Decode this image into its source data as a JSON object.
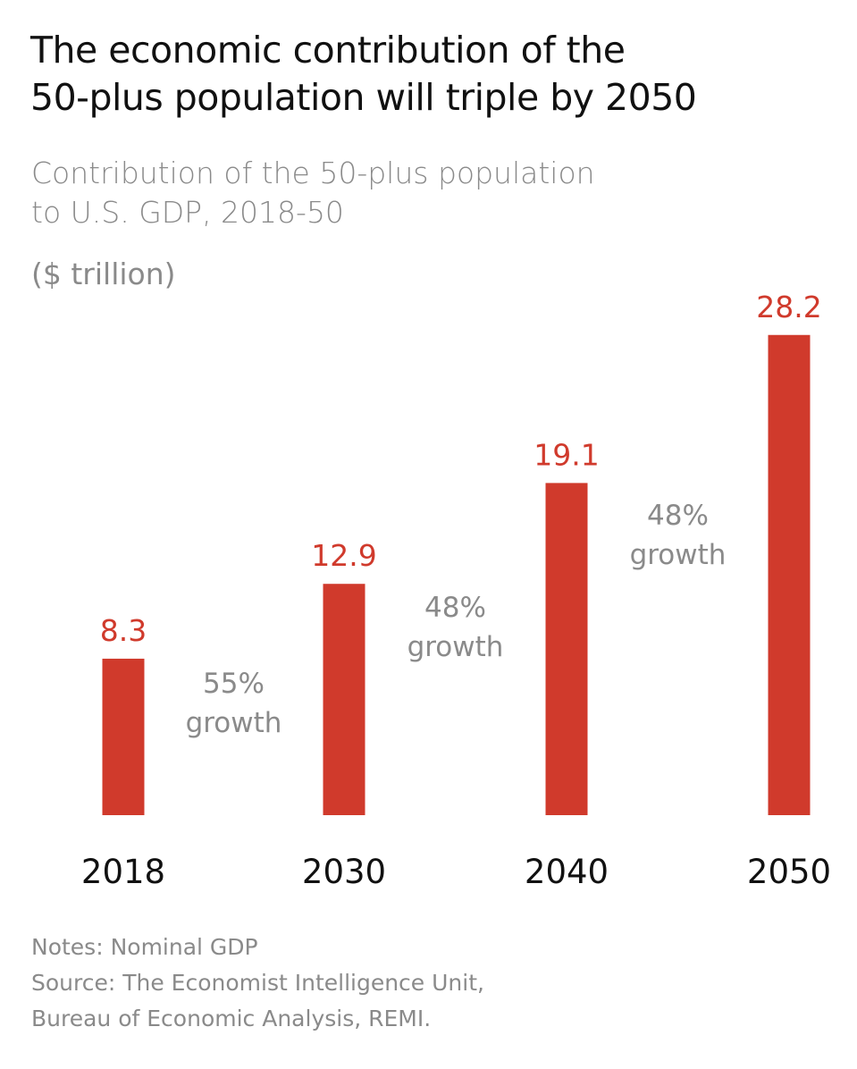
{
  "title_lines": [
    "The economic contribution of the",
    "50-plus population will triple by 2050"
  ],
  "subtitle_lines": [
    "Contribution of the 50-plus population",
    "to U.S. GDP, 2018-50"
  ],
  "unit": "($ trillion)",
  "notes": [
    "Notes: Nominal GDP",
    "Source: The Economist Intelligence Unit,",
    "Bureau of Economic Analysis, REMI."
  ],
  "colors": {
    "bar": "#d03a2c",
    "value_label": "#d03a2c",
    "growth_label": "#8a8a8a",
    "category_label": "#111111"
  },
  "chart_data": {
    "type": "bar",
    "categories": [
      "2018",
      "2030",
      "2040",
      "2050"
    ],
    "values": [
      8.3,
      12.9,
      19.1,
      28.2
    ],
    "data_labels": [
      "8.3",
      "12.9",
      "19.1",
      "28.2"
    ],
    "annotations": [
      {
        "between": [
          "2018",
          "2030"
        ],
        "lines": [
          "55%",
          "growth"
        ]
      },
      {
        "between": [
          "2030",
          "2040"
        ],
        "lines": [
          "48%",
          "growth"
        ]
      },
      {
        "between": [
          "2040",
          "2050"
        ],
        "lines": [
          "48%",
          "growth"
        ]
      }
    ],
    "grid": false,
    "legend": "none"
  }
}
